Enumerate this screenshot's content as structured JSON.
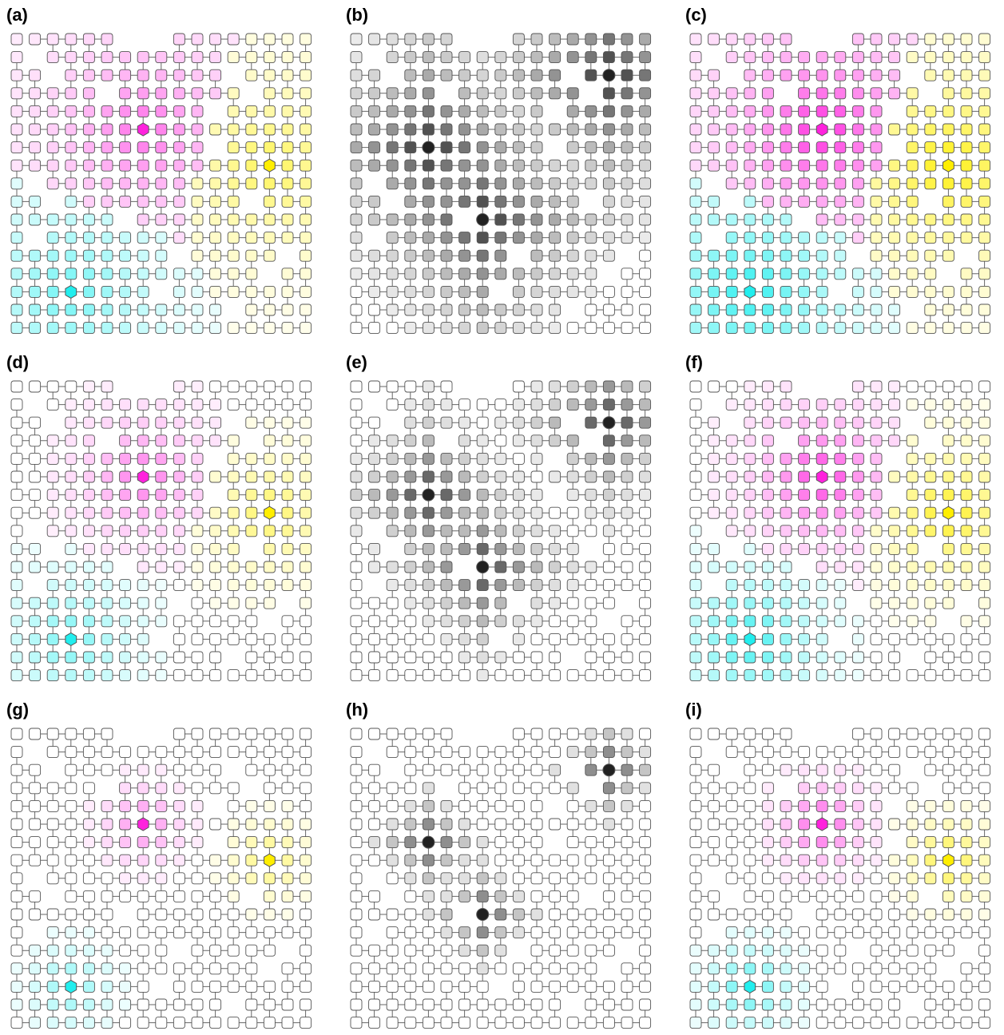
{
  "panels": [
    {
      "label": "(a)",
      "scheme": "color-blend"
    },
    {
      "label": "(b)",
      "scheme": "grayscale"
    },
    {
      "label": "(c)",
      "scheme": "color-blend-strong"
    },
    {
      "label": "(d)",
      "scheme": "color-blend"
    },
    {
      "label": "(e)",
      "scheme": "grayscale"
    },
    {
      "label": "(f)",
      "scheme": "color-blend-strong"
    },
    {
      "label": "(g)",
      "scheme": "color-blend"
    },
    {
      "label": "(h)",
      "scheme": "grayscale"
    },
    {
      "label": "(i)",
      "scheme": "color-blend-strong"
    }
  ],
  "grid": {
    "rows": 17,
    "cols": 17
  },
  "spreads": [
    4.2,
    2.6,
    1.5
  ],
  "sources": [
    {
      "row": 5,
      "col": 7,
      "color": "#ff22dd"
    },
    {
      "row": 7,
      "col": 14,
      "color": "#ffee00"
    },
    {
      "row": 14,
      "col": 3,
      "color": "#22eeee"
    }
  ],
  "gray_sources": [
    {
      "row": 2,
      "col": 14
    },
    {
      "row": 6,
      "col": 4
    },
    {
      "row": 10,
      "col": 7
    }
  ],
  "colors": {
    "node_border": "#555555",
    "edge": "#666666",
    "empty_fill": "#ffffff",
    "gray_dark": "#222222",
    "hub_blue": "#0a1e99",
    "hub_purple": "#a77fe8",
    "hub_orange": "#f3a51f"
  },
  "node_shapes": {
    "regular": "rounded-square",
    "hub": "hexagon or circle"
  }
}
